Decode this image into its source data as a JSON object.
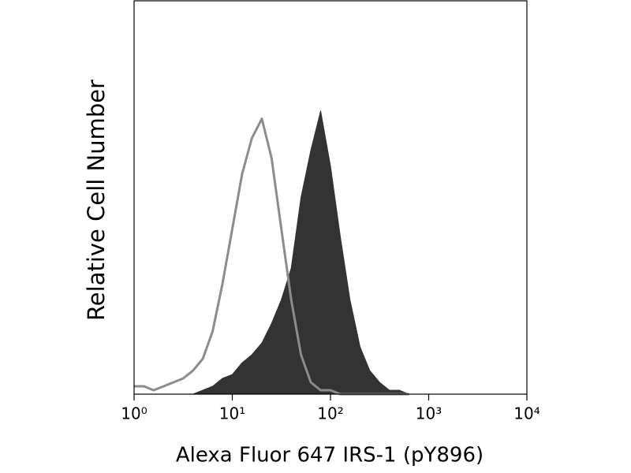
{
  "chart_data": {
    "type": "area",
    "x_label": "Alexa Fluor 647 IRS-1 (pY896)",
    "y_label": "Relative Cell Number",
    "x": [
      1,
      1.26,
      1.58,
      2,
      2.51,
      3.16,
      3.98,
      5.01,
      6.31,
      7.94,
      10,
      12.6,
      15.8,
      20,
      25.1,
      31.6,
      39.8,
      50.1,
      63.1,
      79.4,
      100,
      126,
      158,
      200,
      251,
      316,
      398,
      501,
      631
    ],
    "series": [
      {
        "color": "#333333",
        "filled": true,
        "values": [
          0,
          0,
          0,
          0,
          0,
          0,
          0,
          1,
          2,
          4,
          5,
          8,
          10,
          13,
          18,
          24,
          32,
          50,
          62,
          72,
          58,
          40,
          24,
          12,
          6,
          3,
          1,
          1,
          0
        ]
      },
      {
        "color": "#8c8c8c",
        "filled": false,
        "values": [
          2,
          2,
          1,
          2,
          3,
          4,
          6,
          9,
          16,
          28,
          42,
          56,
          65,
          70,
          60,
          42,
          24,
          10,
          3,
          1,
          1,
          0,
          0,
          0,
          0,
          0,
          0,
          0,
          0
        ]
      }
    ],
    "xscale": "log",
    "xlim": [
      1,
      10000
    ],
    "ylim": [
      0,
      100
    ],
    "xticks": [
      {
        "value": 1,
        "label": "10⁰"
      },
      {
        "value": 10,
        "label": "10¹"
      },
      {
        "value": 100,
        "label": "10²"
      },
      {
        "value": 1000,
        "label": "10³"
      },
      {
        "value": 10000,
        "label": "10⁴"
      }
    ]
  }
}
